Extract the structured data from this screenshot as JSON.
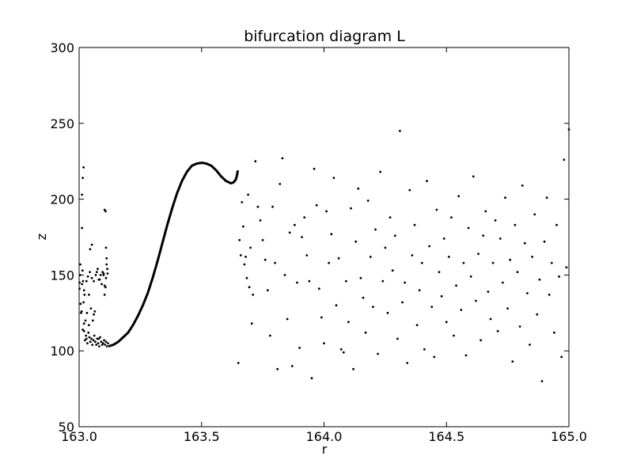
{
  "chart_data": {
    "type": "scatter",
    "title": "bifurcation diagram L",
    "xlabel": "r",
    "ylabel": "z",
    "xlim": [
      163.0,
      165.0
    ],
    "ylim": [
      50,
      300
    ],
    "xticks": [
      163.0,
      163.5,
      164.0,
      164.5,
      165.0
    ],
    "xtick_labels": [
      "163.0",
      "163.5",
      "164.0",
      "164.5",
      "165.0"
    ],
    "yticks": [
      50,
      100,
      150,
      200,
      250,
      300
    ],
    "ytick_labels": [
      "50",
      "100",
      "150",
      "200",
      "250",
      "300"
    ],
    "grid": false,
    "legend": "none",
    "marker_color": "#000000",
    "series": [
      {
        "style": "points",
        "x": [
          163.002,
          163.006,
          163.01,
          163.012,
          163.016,
          163.004,
          163.008,
          163.014,
          163.02,
          163.024,
          163.028,
          163.03,
          163.034,
          163.038,
          163.042,
          163.046,
          163.05,
          163.054,
          163.058,
          163.062,
          163.066,
          163.07,
          163.074,
          163.078,
          163.082,
          163.086,
          163.09,
          163.094,
          163.098,
          163.102,
          163.106,
          163.11,
          163.114,
          163.118,
          163.02,
          163.026,
          163.032,
          163.04,
          163.048,
          163.056,
          163.064,
          163.072,
          163.08,
          163.088,
          163.096,
          163.104,
          163.112,
          163.116,
          163.018,
          163.022,
          163.03,
          163.036,
          163.044,
          163.052,
          163.06,
          163.068,
          163.076,
          163.084,
          163.092,
          163.1,
          163.108,
          163.11,
          163.002,
          163.005,
          163.012,
          163.015,
          163.018,
          163.012,
          163.015,
          163.045,
          163.052,
          163.104,
          163.108,
          163.11,
          163.112,
          163.115,
          163.104,
          163.02,
          163.04,
          163.06,
          163.08,
          163.1
        ],
        "y": [
          145,
          131,
          126,
          144,
          146,
          150,
          125,
          153,
          113,
          107,
          110,
          108,
          105,
          112,
          109,
          106,
          108,
          104,
          107,
          110,
          106,
          104,
          108,
          105,
          103,
          109,
          106,
          104,
          105,
          107,
          104,
          106,
          103,
          105,
          140,
          120,
          125,
          117,
          128,
          120,
          126,
          152,
          147,
          150,
          152,
          143,
          157,
          151,
          132,
          137,
          146,
          149,
          152,
          148,
          146,
          150,
          154,
          147,
          144,
          151,
          142,
          148,
          141,
          157,
          203,
          214,
          221,
          181,
          114,
          167,
          170,
          193,
          192,
          168,
          161,
          154,
          137,
          118,
          137,
          124,
          108,
          150
        ],
        "note": "scattered points, r 163.0-163.12"
      },
      {
        "style": "curve",
        "x": [
          163.12,
          163.14,
          163.16,
          163.18,
          163.2,
          163.22,
          163.24,
          163.26,
          163.28,
          163.3,
          163.32,
          163.34,
          163.36,
          163.38,
          163.4,
          163.42,
          163.44,
          163.46,
          163.48,
          163.5,
          163.52,
          163.54,
          163.56,
          163.58,
          163.6,
          163.62,
          163.63,
          163.64,
          163.645,
          163.648
        ],
        "y": [
          103,
          104,
          106,
          109,
          112,
          117,
          123,
          130,
          138,
          148,
          159,
          171,
          183,
          194,
          204,
          212,
          218,
          222,
          223.5,
          224,
          223.5,
          222,
          219,
          215,
          212,
          210.5,
          211,
          213,
          216,
          219
        ]
      },
      {
        "style": "points",
        "x": [
          163.65,
          163.655,
          163.66,
          163.665,
          163.67,
          163.675,
          163.68,
          163.685,
          163.69,
          163.695,
          163.7,
          163.705,
          163.71,
          163.72,
          163.73,
          163.74,
          163.75,
          163.76,
          163.77,
          163.78,
          163.79,
          163.8,
          163.81,
          163.82,
          163.83,
          163.84,
          163.85,
          163.86,
          163.87,
          163.88,
          163.89,
          163.9,
          163.91,
          163.92,
          163.93,
          163.94,
          163.95,
          163.96,
          163.97,
          163.98,
          163.99,
          164.0,
          164.01,
          164.02,
          164.03,
          164.04,
          164.05,
          164.06,
          164.07,
          164.08,
          164.09,
          164.1,
          164.11,
          164.12,
          164.13,
          164.14,
          164.15,
          164.16,
          164.17,
          164.18,
          164.19,
          164.2,
          164.21,
          164.22,
          164.23,
          164.24,
          164.25,
          164.26,
          164.27,
          164.28,
          164.29,
          164.3,
          164.31,
          164.32,
          164.33,
          164.34,
          164.35,
          164.36,
          164.37,
          164.38,
          164.39,
          164.4,
          164.41,
          164.42,
          164.43,
          164.44,
          164.45,
          164.46,
          164.47,
          164.48,
          164.49,
          164.5,
          164.51,
          164.52,
          164.53,
          164.54,
          164.55,
          164.56,
          164.57,
          164.58,
          164.59,
          164.6,
          164.61,
          164.62,
          164.63,
          164.64,
          164.65,
          164.66,
          164.67,
          164.68,
          164.69,
          164.7,
          164.71,
          164.72,
          164.73,
          164.74,
          164.75,
          164.76,
          164.77,
          164.78,
          164.79,
          164.8,
          164.81,
          164.82,
          164.83,
          164.84,
          164.85,
          164.86,
          164.87,
          164.88,
          164.89,
          164.9,
          164.91,
          164.92,
          164.93,
          164.94,
          164.95,
          164.96,
          164.97,
          164.98,
          164.99,
          165.0
        ],
        "y": [
          92,
          173,
          163,
          198,
          182,
          157,
          162,
          148,
          203,
          142,
          168,
          118,
          137,
          225,
          195,
          186,
          173,
          160,
          140,
          110,
          195,
          158,
          88,
          210,
          227,
          150,
          121,
          178,
          90,
          183,
          145,
          102,
          175,
          188,
          163,
          146,
          82,
          220,
          196,
          141,
          122,
          105,
          192,
          158,
          177,
          214,
          130,
          161,
          101,
          99,
          146,
          119,
          194,
          88,
          172,
          207,
          148,
          135,
          112,
          199,
          162,
          129,
          180,
          98,
          218,
          146,
          168,
          125,
          188,
          153,
          176,
          108,
          245,
          132,
          145,
          92,
          206,
          163,
          183,
          117,
          140,
          158,
          101,
          212,
          169,
          129,
          96,
          193,
          152,
          136,
          174,
          119,
          162,
          188,
          110,
          143,
          202,
          127,
          158,
          97,
          181,
          149,
          215,
          133,
          164,
          107,
          176,
          192,
          139,
          121,
          158,
          186,
          113,
          174,
          145,
          201,
          128,
          160,
          93,
          183,
          152,
          116,
          209,
          171,
          138,
          104,
          162,
          190,
          124,
          147,
          80,
          172,
          201,
          137,
          158,
          112,
          183,
          149,
          96,
          226,
          155,
          246
        ]
      }
    ]
  }
}
